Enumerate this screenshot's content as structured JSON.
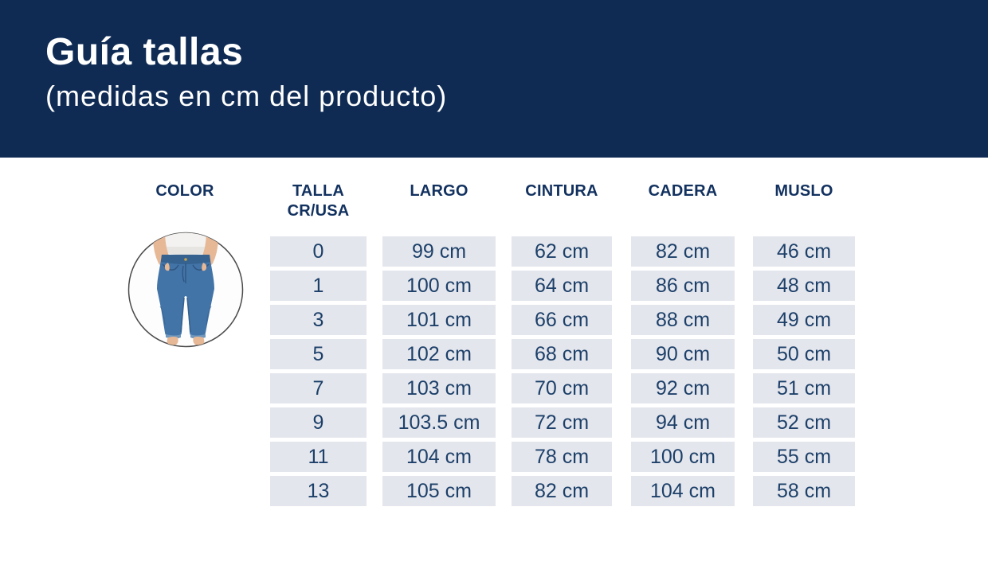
{
  "header": {
    "title": "Guía tallas",
    "subtitle": "(medidas en cm del producto)"
  },
  "colors": {
    "header_bg": "#0f2b54",
    "header_text": "#ffffff",
    "table_header_text": "#12315f",
    "cell_bg": "#e4e6ed",
    "cell_text": "#1d4069",
    "circle_border": "#4a4a4a",
    "denim": "#4274a8",
    "denim_dark": "#2f5580",
    "skin": "#e6b896",
    "shirt": "#f3f2f0"
  },
  "table": {
    "columns": [
      {
        "label": "COLOR"
      },
      {
        "label": "TALLA",
        "sublabel": "CR/USA"
      },
      {
        "label": "LARGO"
      },
      {
        "label": "CINTURA"
      },
      {
        "label": "CADERA"
      },
      {
        "label": "MUSLO"
      }
    ],
    "column_keys": [
      "talla",
      "largo",
      "cintura",
      "cadera",
      "muslo"
    ],
    "color_image": "jeans-photo",
    "rows": [
      {
        "talla": "0",
        "largo": "99 cm",
        "cintura": "62 cm",
        "cadera": "82 cm",
        "muslo": "46 cm"
      },
      {
        "talla": "1",
        "largo": "100 cm",
        "cintura": "64 cm",
        "cadera": "86 cm",
        "muslo": "48 cm"
      },
      {
        "talla": "3",
        "largo": "101 cm",
        "cintura": "66 cm",
        "cadera": "88 cm",
        "muslo": "49 cm"
      },
      {
        "talla": "5",
        "largo": "102 cm",
        "cintura": "68 cm",
        "cadera": "90 cm",
        "muslo": "50 cm"
      },
      {
        "talla": "7",
        "largo": "103 cm",
        "cintura": "70 cm",
        "cadera": "92 cm",
        "muslo": "51 cm"
      },
      {
        "talla": "9",
        "largo": "103.5 cm",
        "cintura": "72 cm",
        "cadera": "94 cm",
        "muslo": "52 cm"
      },
      {
        "talla": "11",
        "largo": "104 cm",
        "cintura": "78 cm",
        "cadera": "100 cm",
        "muslo": "55 cm"
      },
      {
        "talla": "13",
        "largo": "105 cm",
        "cintura": "82 cm",
        "cadera": "104 cm",
        "muslo": "58 cm"
      }
    ]
  }
}
